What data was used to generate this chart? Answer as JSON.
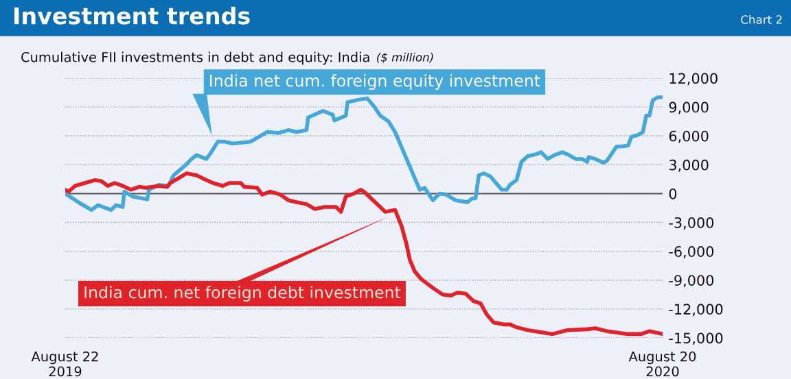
{
  "chart_data": {
    "type": "line",
    "title": "Investment trends",
    "subtitle": "Cumulative FII investments in debt and equity: India",
    "ylabel": "($ million)",
    "annotations": [
      "Chart 2"
    ],
    "legend": false,
    "grid": "y",
    "marker": "none",
    "line_style": "solid",
    "xlim": [
      "2019-08-22",
      "2020-08-20"
    ],
    "xticks": [
      {
        "value": "2019-08-22",
        "label": "August 22\n2019"
      },
      {
        "value": "2020-08-20",
        "label": "August 20\n2020"
      }
    ],
    "ylim": [
      -15000,
      12000
    ],
    "yticks": [
      {
        "value": 12000,
        "label": "12,000"
      },
      {
        "value": 9000,
        "label": "9,000"
      },
      {
        "value": 6000,
        "label": "6,000"
      },
      {
        "value": 3000,
        "label": "3,000"
      },
      0,
      {
        "value": -3000,
        "label": "-3,000"
      },
      {
        "value": -6000,
        "label": "-6,000"
      },
      {
        "value": -9000,
        "label": "-9,000"
      },
      {
        "value": -12000,
        "label": "-12,000"
      },
      {
        "value": -15000,
        "label": "-15,000"
      }
    ],
    "ref_lines": [
      {
        "axis": "y",
        "value": 0,
        "color": "#555555",
        "line_style": "solid"
      }
    ],
    "series": [
      {
        "name": "India net cum. foreign equity investment",
        "color": "#45a8d8",
        "x": [
          "2019-08-22",
          "2019-08-31",
          "2019-09-07",
          "2019-09-11",
          "2019-09-19",
          "2019-09-22",
          "2019-09-26",
          "2019-09-27",
          "2019-10-02",
          "2019-10-11",
          "2019-10-12",
          "2019-10-18",
          "2019-10-24",
          "2019-10-27",
          "2019-11-03",
          "2019-11-07",
          "2019-11-10",
          "2019-11-16",
          "2019-11-19",
          "2019-11-23",
          "2019-11-27",
          "2019-12-02",
          "2019-12-13",
          "2019-12-23",
          "2019-12-30",
          "2020-01-05",
          "2020-01-10",
          "2020-01-16",
          "2020-01-17",
          "2020-01-26",
          "2020-02-01",
          "2020-02-02",
          "2020-02-09",
          "2020-02-10",
          "2020-02-18",
          "2020-02-22",
          "2020-02-26",
          "2020-03-01",
          "2020-03-06",
          "2020-03-10",
          "2020-03-13",
          "2020-03-17",
          "2020-03-22",
          "2020-03-25",
          "2020-03-28",
          "2020-04-02",
          "2020-04-06",
          "2020-04-10",
          "2020-04-16",
          "2020-04-23",
          "2020-04-26",
          "2020-04-28",
          "2020-04-30",
          "2020-05-03",
          "2020-05-07",
          "2020-05-14",
          "2020-05-17",
          "2020-05-19",
          "2020-05-23",
          "2020-05-26",
          "2020-05-30",
          "2020-06-04",
          "2020-06-07",
          "2020-06-11",
          "2020-06-15",
          "2020-06-20",
          "2020-06-24",
          "2020-06-28",
          "2020-07-02",
          "2020-07-05",
          "2020-07-06",
          "2020-07-10",
          "2020-07-15",
          "2020-07-17",
          "2020-07-23",
          "2020-07-26",
          "2020-07-30",
          "2020-08-01",
          "2020-08-05",
          "2020-08-08",
          "2020-08-10",
          "2020-08-12",
          "2020-08-14",
          "2020-08-17",
          "2020-08-20"
        ],
        "values": [
          0,
          -1000,
          -1700,
          -1200,
          -1700,
          -1200,
          -1400,
          200,
          -300,
          -600,
          400,
          900,
          800,
          1900,
          2900,
          3600,
          4000,
          3600,
          4300,
          5400,
          5400,
          5200,
          5400,
          6400,
          6300,
          6600,
          6400,
          6600,
          7900,
          8600,
          8200,
          7600,
          8100,
          9500,
          9800,
          9900,
          9100,
          8100,
          7500,
          6400,
          5200,
          3600,
          1600,
          400,
          600,
          -700,
          0,
          -100,
          -700,
          -900,
          -500,
          -500,
          1900,
          2100,
          1800,
          400,
          400,
          900,
          1400,
          3300,
          3900,
          4100,
          4300,
          3600,
          4000,
          4300,
          4000,
          3600,
          3600,
          3300,
          3800,
          3600,
          3200,
          3400,
          4900,
          4900,
          5000,
          5900,
          6100,
          6400,
          8100,
          8100,
          9700,
          10000,
          10000
        ]
      },
      {
        "name": "India cum. net foreign debt investment",
        "color": "#e0222b",
        "x": [
          "2019-08-22",
          "2019-08-24",
          "2019-08-28",
          "2019-09-03",
          "2019-09-09",
          "2019-09-13",
          "2019-09-17",
          "2019-09-21",
          "2019-09-26",
          "2019-10-01",
          "2019-10-06",
          "2019-10-10",
          "2019-10-18",
          "2019-10-23",
          "2019-10-25",
          "2019-10-30",
          "2019-11-04",
          "2019-11-10",
          "2019-11-16",
          "2019-11-20",
          "2019-11-26",
          "2019-11-30",
          "2019-12-07",
          "2019-12-09",
          "2019-12-17",
          "2019-12-20",
          "2019-12-25",
          "2019-12-31",
          "2020-01-05",
          "2020-01-10",
          "2020-01-16",
          "2020-01-21",
          "2020-01-27",
          "2020-02-03",
          "2020-02-06",
          "2020-02-09",
          "2020-02-14",
          "2020-02-18",
          "2020-02-20",
          "2020-02-25",
          "2020-03-04",
          "2020-03-10",
          "2020-03-14",
          "2020-03-17",
          "2020-03-19",
          "2020-03-22",
          "2020-03-26",
          "2020-04-02",
          "2020-04-08",
          "2020-04-13",
          "2020-04-17",
          "2020-04-22",
          "2020-04-27",
          "2020-05-01",
          "2020-05-05",
          "2020-05-09",
          "2020-05-15",
          "2020-05-19",
          "2020-05-23",
          "2020-05-30",
          "2020-06-14",
          "2020-06-23",
          "2020-07-05",
          "2020-07-10",
          "2020-07-17",
          "2020-07-30",
          "2020-08-07",
          "2020-08-12",
          "2020-08-20"
        ],
        "values": [
          400,
          200,
          800,
          1100,
          1400,
          1300,
          800,
          1100,
          800,
          400,
          700,
          600,
          800,
          700,
          1100,
          1600,
          2100,
          1900,
          1400,
          1100,
          800,
          1100,
          1100,
          700,
          600,
          -100,
          200,
          -100,
          -700,
          -900,
          -1100,
          -1600,
          -1400,
          -1400,
          -1900,
          -300,
          0,
          400,
          200,
          -600,
          -1900,
          -1700,
          -3400,
          -5300,
          -6900,
          -8100,
          -8900,
          -9800,
          -10500,
          -10600,
          -10300,
          -10400,
          -11200,
          -11400,
          -12600,
          -13400,
          -13600,
          -13600,
          -13900,
          -14200,
          -14600,
          -14200,
          -14100,
          -14000,
          -14300,
          -14600,
          -14600,
          -14300,
          -14600
        ]
      }
    ]
  }
}
